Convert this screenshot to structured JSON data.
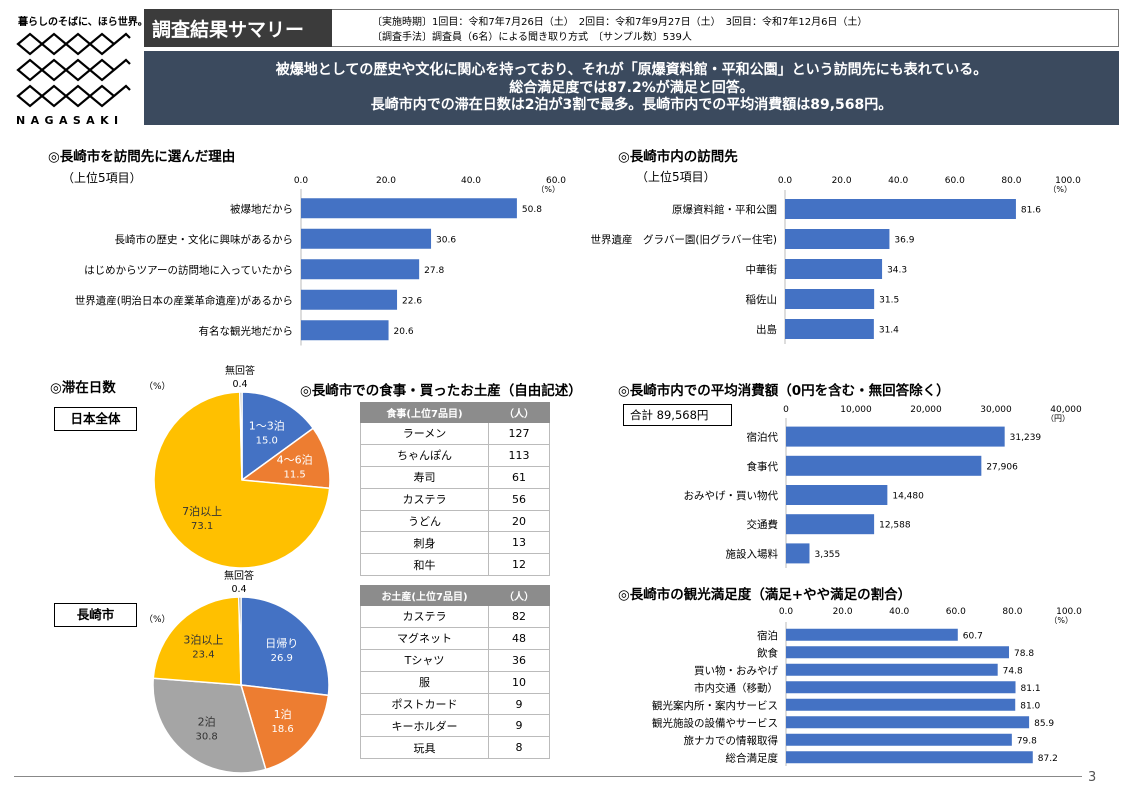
{
  "logo": {
    "slogan": "暮らしのそばに、ほら世界。",
    "word": "NAGASAKI"
  },
  "header": {
    "title": "調査結果サマリー",
    "period": "〔実施時期〕1回目：令和7年7月26日（土）　2回目：令和7年9月27日（土）　3回目：令和7年12月6日（土）",
    "method": "〔調査手法〕調査員（6名）による聞き取り方式　〔サンプル数〕539人"
  },
  "summary": [
    "被爆地としての歴史や文化に関心を持っており、それが「原爆資料館・平和公園」という訪問先にも表れている。",
    "総合満足度では87.2%が満足と回答。",
    "長崎市内での滞在日数は2泊が3割で最多。長崎市内での平均消費額は89,568円。"
  ],
  "colors": {
    "bar": "#4472c4",
    "blue": "#4472c4",
    "orange": "#ed7d31",
    "yellow": "#ffc000",
    "gray": "#a5a5a5"
  },
  "chart_data": [
    {
      "id": "reasons",
      "type": "bar",
      "title": "◎長崎市を訪問先に選んだ理由",
      "subtitle": "（上位5項目）",
      "unit": "（%）",
      "categories": [
        "被爆地だから",
        "長崎市の歴史・文化に興味があるから",
        "はじめからツアーの訪問地に入っていたから",
        "世界遺産(明治日本の産業革命遺産)があるから",
        "有名な観光地だから"
      ],
      "values": [
        50.8,
        30.6,
        27.8,
        22.6,
        20.6
      ],
      "labels": [
        "50.8",
        "30.6",
        "27.8",
        "22.6",
        "20.6"
      ],
      "ticks": [
        "0.0",
        "20.0",
        "40.0",
        "60.0"
      ],
      "xlim": [
        0,
        60
      ]
    },
    {
      "id": "visits",
      "type": "bar",
      "title": "◎長崎市内の訪問先",
      "subtitle": "（上位5項目）",
      "unit": "（%）",
      "categories": [
        "原爆資料館・平和公園",
        "世界遺産　グラバー園(旧グラバー住宅)",
        "中華街",
        "稲佐山",
        "出島"
      ],
      "values": [
        81.6,
        36.9,
        34.3,
        31.5,
        31.4
      ],
      "labels": [
        "81.6",
        "36.9",
        "34.3",
        "31.5",
        "31.4"
      ],
      "ticks": [
        "0.0",
        "20.0",
        "40.0",
        "60.0",
        "80.0",
        "100.0"
      ],
      "xlim": [
        0,
        100
      ]
    },
    {
      "id": "stay_all",
      "type": "pie",
      "title": "◎滞在日数",
      "unit": "（%）",
      "group_label": "日本全体",
      "slices": [
        {
          "name": "1～3泊",
          "value": 15.0,
          "label": "15.0",
          "color": "#4472c4"
        },
        {
          "name": "4～6泊",
          "value": 11.5,
          "label": "11.5",
          "color": "#ed7d31"
        },
        {
          "name": "7泊以上",
          "value": 73.1,
          "label": "73.1",
          "color": "#ffc000"
        },
        {
          "name": "無回答",
          "value": 0.4,
          "label": "0.4",
          "color": "#a5a5a5"
        }
      ]
    },
    {
      "id": "stay_city",
      "type": "pie",
      "unit": "（%）",
      "group_label": "長崎市",
      "slices": [
        {
          "name": "日帰り",
          "value": 26.9,
          "label": "26.9",
          "color": "#4472c4"
        },
        {
          "name": "1泊",
          "value": 18.6,
          "label": "18.6",
          "color": "#ed7d31"
        },
        {
          "name": "2泊",
          "value": 30.8,
          "label": "30.8",
          "color": "#a5a5a5"
        },
        {
          "name": "3泊以上",
          "value": 23.4,
          "label": "23.4",
          "color": "#ffc000"
        },
        {
          "name": "無回答",
          "value": 0.4,
          "label": "0.4",
          "color": "#5b5b5b"
        }
      ]
    },
    {
      "id": "spend",
      "type": "bar",
      "title": "◎長崎市内での平均消費額（0円を含む・無回答除く）",
      "total_label": "合計 89,568円",
      "unit": "（円）",
      "categories": [
        "宿泊代",
        "食事代",
        "おみやげ・買い物代",
        "交通費",
        "施設入場料"
      ],
      "values": [
        31239,
        27906,
        14480,
        12588,
        3355
      ],
      "labels": [
        "31,239",
        "27,906",
        "14,480",
        "12,588",
        "3,355"
      ],
      "ticks": [
        "0",
        "10,000",
        "20,000",
        "30,000",
        "40,000"
      ],
      "xlim": [
        0,
        40000
      ]
    },
    {
      "id": "satisfaction",
      "type": "bar",
      "title": "◎長崎市の観光満足度（満足+やや満足の割合）",
      "unit": "（%）",
      "categories": [
        "宿泊",
        "飲食",
        "買い物・おみやげ",
        "市内交通（移動）",
        "観光案内所・案内サービス",
        "観光施設の設備やサービス",
        "旅ナカでの情報取得",
        "総合満足度"
      ],
      "values": [
        60.7,
        78.8,
        74.8,
        81.1,
        81.0,
        85.9,
        79.8,
        87.2
      ],
      "labels": [
        "60.7",
        "78.8",
        "74.8",
        "81.1",
        "81.0",
        "85.9",
        "79.8",
        "87.2"
      ],
      "ticks": [
        "0.0",
        "20.0",
        "40.0",
        "60.0",
        "80.0",
        "100.0"
      ],
      "xlim": [
        0,
        100
      ]
    }
  ],
  "food": {
    "title": "◎長崎市での食事・買ったお土産（自由記述）",
    "meals": {
      "head": "食事(上位7品目)",
      "unit": "（人）",
      "rows": [
        [
          "ラーメン",
          "127"
        ],
        [
          "ちゃんぽん",
          "113"
        ],
        [
          "寿司",
          "61"
        ],
        [
          "カステラ",
          "56"
        ],
        [
          "うどん",
          "20"
        ],
        [
          "刺身",
          "13"
        ],
        [
          "和牛",
          "12"
        ]
      ]
    },
    "souvenirs": {
      "head": "お土産(上位7品目)",
      "unit": "（人）",
      "rows": [
        [
          "カステラ",
          "82"
        ],
        [
          "マグネット",
          "48"
        ],
        [
          "Tシャツ",
          "36"
        ],
        [
          "服",
          "10"
        ],
        [
          "ポストカード",
          "9"
        ],
        [
          "キーホルダー",
          "9"
        ],
        [
          "玩具",
          "8"
        ]
      ]
    }
  },
  "page": "3"
}
